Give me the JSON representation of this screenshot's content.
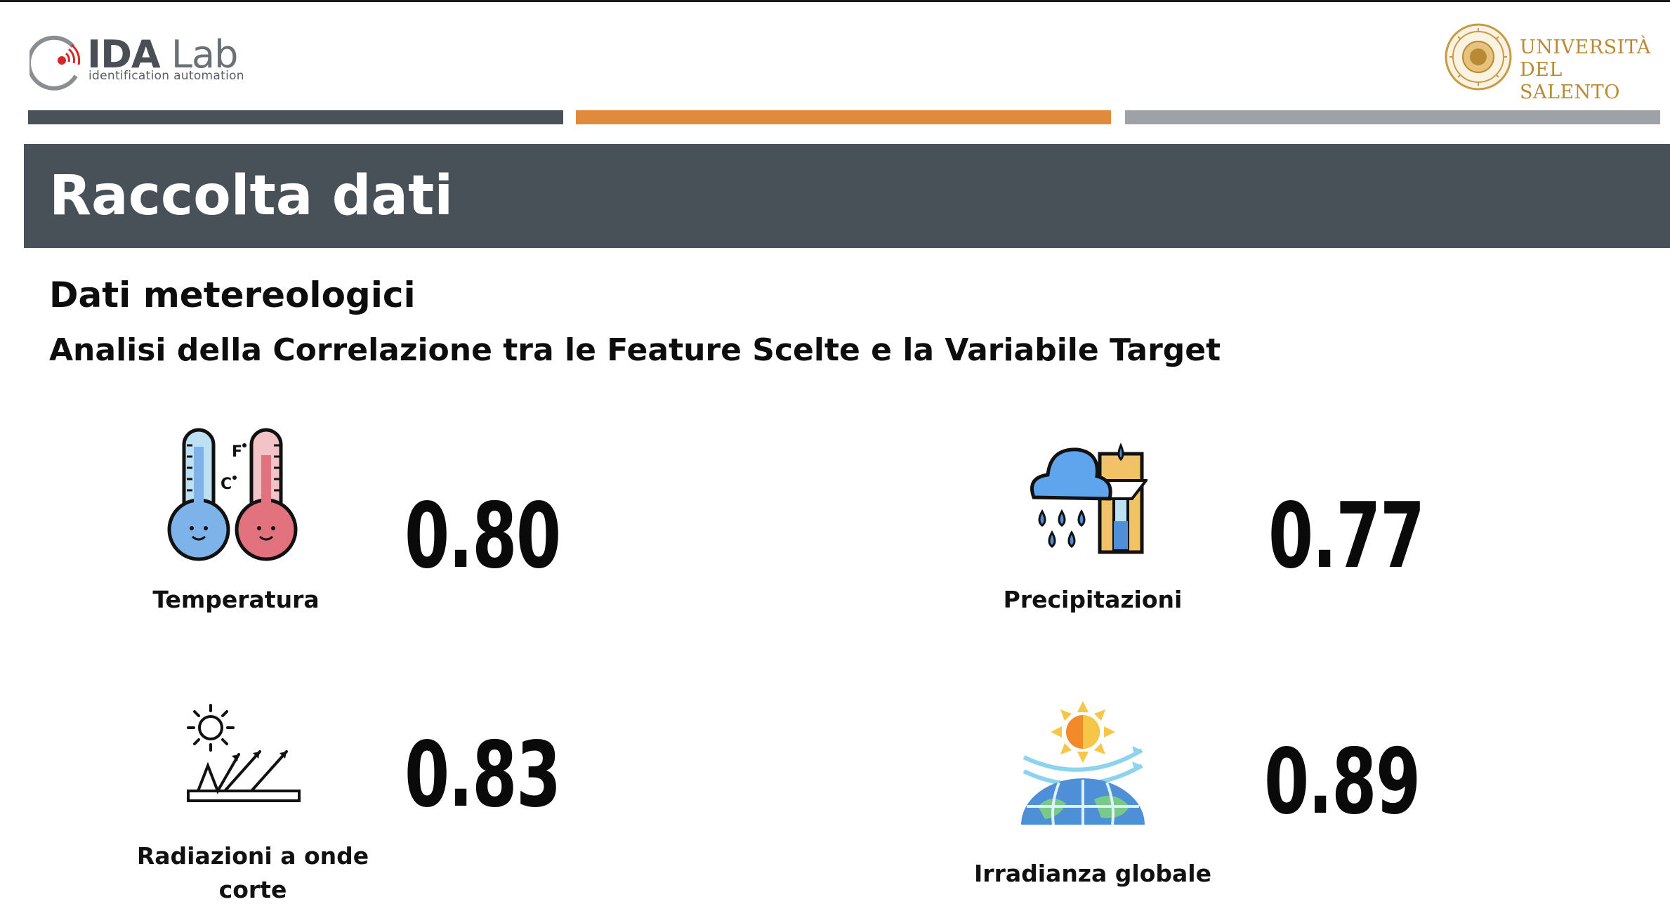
{
  "header": {
    "ida_logo": {
      "name_ida": "IDA",
      "name_lab": "Lab",
      "tagline": "identification  automation"
    },
    "university_logo": {
      "line1": "UNIVERSITÀ",
      "line2": "DEL SALENTO"
    }
  },
  "colors": {
    "bar_dark": "#4b5158",
    "bar_orange": "#e08a3e",
    "bar_grey": "#9ea2a6",
    "banner_bg": "#495158",
    "university_gold": "#b98a36"
  },
  "banner": {
    "title": "Raccolta dati"
  },
  "section": {
    "title": "Dati metereologici",
    "subtitle": "Analisi della Correlazione tra le Feature Scelte e la Variabile Target"
  },
  "metrics": [
    {
      "label": "Temperatura",
      "value": "0.80",
      "icon": "thermometer-icon"
    },
    {
      "label": "Precipitazioni",
      "value": "0.77",
      "icon": "rain-gauge-icon"
    },
    {
      "label": "Radiazioni a onde corte",
      "value": "0.83",
      "icon": "shortwave-radiation-icon"
    },
    {
      "label": "Irradianza globale",
      "value": "0.89",
      "icon": "global-irradiance-icon"
    }
  ]
}
